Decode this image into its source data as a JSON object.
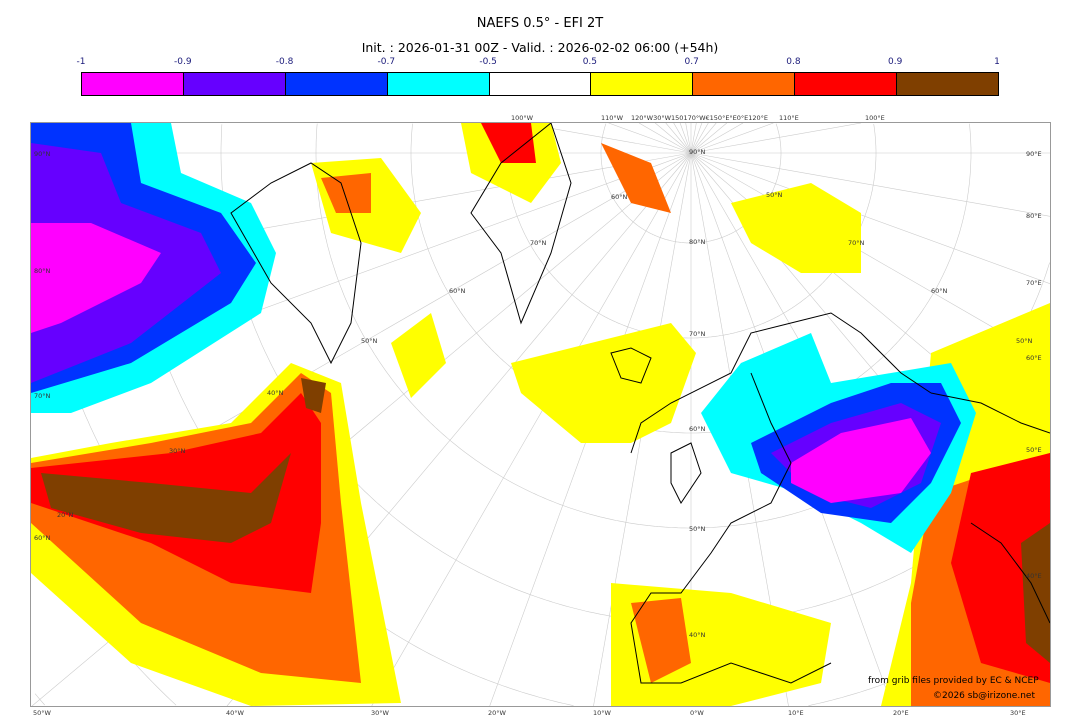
{
  "title": "NAEFS 0.5° - EFI 2T",
  "subtitle": "Init. : 2026-01-31 00Z - Valid. : 2026-02-02 06:00 (+54h)",
  "colorbar": {
    "ticks": [
      "-1",
      "-0.9",
      "-0.8",
      "-0.7",
      "-0.5",
      "0.5",
      "0.7",
      "0.8",
      "0.9",
      "1"
    ],
    "colors": [
      "#ff00ff",
      "#6600ff",
      "#0033ff",
      "#00ffff",
      "#ffffff",
      "#ffff00",
      "#ff6600",
      "#ff0000",
      "#7f3f00"
    ]
  },
  "map": {
    "left_labels": [
      "90°N",
      "80°N",
      "70°N",
      "60°N"
    ],
    "right_labels": [
      "90°E",
      "80°E",
      "70°E",
      "60°E",
      "50°E",
      "40°E"
    ],
    "bottom_labels": [
      "50°W",
      "40°W",
      "30°W",
      "20°W",
      "10°W",
      "0°W",
      "10°E",
      "20°E",
      "30°E"
    ],
    "top_labels": [
      "100°W",
      "110°W",
      "120°W30°W150170°W€150°E°E0°E120°E",
      "110°E",
      "100°E"
    ],
    "inner_labels": [
      "90°N",
      "80°N",
      "70°N",
      "60°N",
      "50°N",
      "40°N",
      "60°N",
      "50°N",
      "40°N",
      "30°N",
      "20°N",
      "70°N",
      "60°N",
      "50°N",
      "70°N",
      "60°N",
      "50°N"
    ]
  },
  "credits": {
    "source": "from grib files provided by EC & NCEP",
    "copyright": "©2026 sb@irizone.net"
  }
}
